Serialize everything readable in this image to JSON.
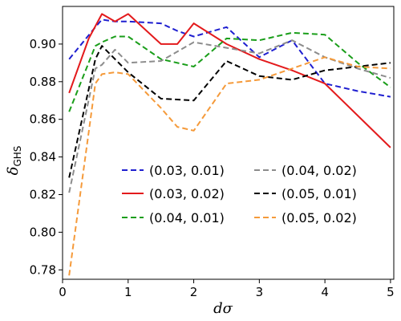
{
  "chart_data": {
    "type": "line",
    "title": "",
    "xlabel": "dσ",
    "ylabel_main": "δ",
    "ylabel_sub": "GHS",
    "xlim": [
      0,
      5.05
    ],
    "ylim": [
      0.775,
      0.92
    ],
    "xticks": [
      0,
      1,
      2,
      3,
      4,
      5
    ],
    "yticks": [
      0.78,
      0.8,
      0.82,
      0.84,
      0.86,
      0.88,
      0.9
    ],
    "ytick_labels": [
      "0.78",
      "0.80",
      "0.82",
      "0.84",
      "0.86",
      "0.88",
      "0.90"
    ],
    "grid": false,
    "legend_position": "lower-center",
    "series": [
      {
        "name": "(0.03, 0.01)",
        "color": "#1f1fd0",
        "dash": "dashed",
        "x": [
          0.1,
          0.5,
          0.6,
          0.8,
          1.0,
          1.5,
          1.75,
          2.0,
          2.5,
          3.0,
          3.5,
          4.0,
          4.5,
          5.0
        ],
        "y": [
          0.892,
          0.909,
          0.913,
          0.912,
          0.912,
          0.911,
          0.907,
          0.904,
          0.909,
          0.893,
          0.902,
          0.879,
          0.875,
          0.872
        ]
      },
      {
        "name": "(0.03, 0.02)",
        "color": "#e31a1c",
        "dash": "solid",
        "x": [
          0.1,
          0.4,
          0.6,
          0.8,
          1.0,
          1.5,
          1.75,
          2.0,
          2.5,
          3.0,
          3.5,
          4.0,
          4.5,
          5.0
        ],
        "y": [
          0.874,
          0.903,
          0.916,
          0.912,
          0.916,
          0.9,
          0.9,
          0.911,
          0.9,
          0.892,
          0.886,
          0.879,
          0.862,
          0.845
        ]
      },
      {
        "name": "(0.04, 0.01)",
        "color": "#1a9e1a",
        "dash": "dashed",
        "x": [
          0.1,
          0.5,
          0.6,
          0.8,
          1.0,
          1.5,
          2.0,
          2.5,
          3.0,
          3.5,
          4.0,
          4.5,
          5.0
        ],
        "y": [
          0.864,
          0.899,
          0.901,
          0.904,
          0.904,
          0.892,
          0.888,
          0.903,
          0.902,
          0.906,
          0.905,
          0.89,
          0.877
        ]
      },
      {
        "name": "(0.04, 0.02)",
        "color": "#8c8c8c",
        "dash": "dashed",
        "x": [
          0.1,
          0.5,
          0.6,
          0.8,
          1.0,
          1.5,
          2.0,
          2.5,
          3.0,
          3.5,
          4.0,
          4.5,
          5.0
        ],
        "y": [
          0.821,
          0.887,
          0.889,
          0.897,
          0.89,
          0.891,
          0.901,
          0.898,
          0.895,
          0.902,
          0.893,
          0.887,
          0.882
        ]
      },
      {
        "name": "(0.05, 0.01)",
        "color": "#000000",
        "dash": "dashed",
        "x": [
          0.1,
          0.5,
          0.6,
          0.8,
          1.0,
          1.5,
          2.0,
          2.5,
          3.0,
          3.5,
          4.0,
          4.5,
          5.0
        ],
        "y": [
          0.829,
          0.892,
          0.899,
          0.892,
          0.885,
          0.871,
          0.87,
          0.891,
          0.883,
          0.881,
          0.886,
          0.888,
          0.89
        ]
      },
      {
        "name": "(0.05, 0.02)",
        "color": "#f59a3a",
        "dash": "dashed",
        "x": [
          0.1,
          0.5,
          0.6,
          0.8,
          1.0,
          1.5,
          1.75,
          2.0,
          2.5,
          3.0,
          3.5,
          4.0,
          4.5,
          5.0
        ],
        "y": [
          0.777,
          0.879,
          0.884,
          0.885,
          0.884,
          0.866,
          0.856,
          0.854,
          0.879,
          0.881,
          0.887,
          0.893,
          0.888,
          0.887
        ]
      }
    ]
  }
}
